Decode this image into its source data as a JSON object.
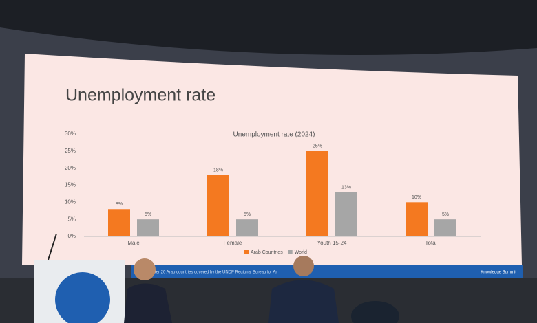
{
  "slide_title": "Unemployment rate",
  "footer": {
    "note": "ter 20 Arab countries covered by the UNDP Regional Bureau for Ar",
    "brand": "Knowledge Summit"
  },
  "chart_data": {
    "type": "bar",
    "title": "Unemployment rate (2024)",
    "categories": [
      "Male",
      "Female",
      "Youth 15-24",
      "Total"
    ],
    "series": [
      {
        "name": "Arab Countries",
        "color": "#f47920",
        "values": [
          8,
          18,
          25,
          10
        ],
        "value_labels": [
          "8%",
          "18%",
          "25%",
          "10%"
        ]
      },
      {
        "name": "World",
        "color": "#a6a6a6",
        "values": [
          5,
          5,
          13,
          5
        ],
        "value_labels": [
          "5%",
          "5%",
          "13%",
          "5%"
        ]
      }
    ],
    "ylim": [
      0,
      30
    ],
    "yticks": [
      {
        "value": 0,
        "label": "0%"
      },
      {
        "value": 5,
        "label": "5%"
      },
      {
        "value": 10,
        "label": "10%"
      },
      {
        "value": 15,
        "label": "15%"
      },
      {
        "value": 20,
        "label": "20%"
      },
      {
        "value": 25,
        "label": "25%"
      },
      {
        "value": 30,
        "label": "30%"
      }
    ],
    "legend": "bottom"
  }
}
